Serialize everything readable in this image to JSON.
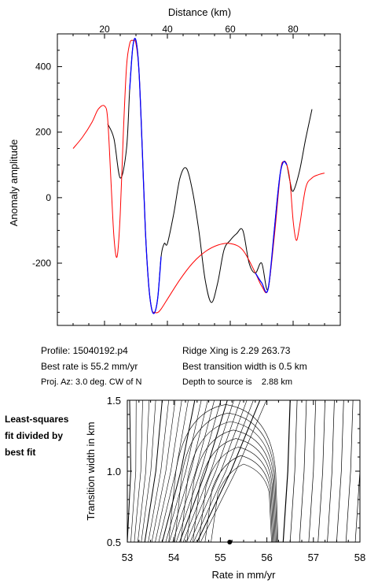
{
  "chart_data": [
    {
      "type": "line",
      "xlabel": "Distance (km)",
      "ylabel": "Anomaly amplitude",
      "xlim": [
        5,
        95
      ],
      "ylim": [
        -390,
        500
      ],
      "x_ticks": [
        20,
        40,
        60,
        80
      ],
      "y_ticks": [
        -200,
        0,
        200,
        400
      ],
      "grid": false,
      "series": [
        {
          "color": "#000000",
          "x": [
            21,
            23,
            25,
            27,
            28,
            29,
            30,
            31,
            32,
            33,
            34,
            35,
            36,
            37,
            38,
            39,
            40,
            42,
            44,
            46,
            48,
            50,
            52,
            54,
            56,
            58,
            60,
            62,
            64,
            66,
            68,
            70,
            72,
            74,
            75,
            76,
            77,
            78,
            79,
            80,
            82,
            84,
            86
          ],
          "y": [
            225,
            180,
            60,
            150,
            330,
            460,
            480,
            380,
            150,
            -100,
            -260,
            -340,
            -350,
            -300,
            -180,
            -140,
            -140,
            -50,
            60,
            90,
            20,
            -100,
            -250,
            -320,
            -260,
            -160,
            -130,
            -110,
            -100,
            -200,
            -230,
            -200,
            -280,
            -100,
            0,
            80,
            110,
            100,
            50,
            20,
            80,
            180,
            270
          ]
        },
        {
          "color": "#ff0000",
          "x": [
            10,
            13,
            16,
            18,
            20,
            21,
            22,
            23,
            24,
            25,
            26,
            27,
            28,
            29,
            30,
            31,
            32,
            33,
            34,
            35,
            36,
            37,
            38,
            40,
            44,
            48,
            52,
            56,
            60,
            64,
            68,
            70,
            72,
            74,
            76,
            77,
            78,
            79,
            80,
            81,
            82,
            84,
            86,
            88,
            90
          ],
          "y": [
            150,
            185,
            230,
            270,
            280,
            240,
            60,
            -120,
            -180,
            -50,
            200,
            400,
            470,
            480,
            470,
            380,
            150,
            -100,
            -260,
            -340,
            -350,
            -350,
            -340,
            -310,
            -250,
            -200,
            -165,
            -145,
            -140,
            -160,
            -230,
            -270,
            -280,
            -120,
            80,
            110,
            100,
            50,
            -70,
            -130,
            -90,
            30,
            60,
            70,
            75
          ]
        },
        {
          "color": "#0000ff",
          "x": [
            28,
            29,
            30,
            31,
            32,
            33,
            34,
            35,
            36,
            37,
            38,
            44,
            52,
            60,
            66,
            68,
            70,
            72,
            74,
            75,
            76,
            77,
            78
          ],
          "y": [
            330,
            460,
            480,
            380,
            150,
            -100,
            -260,
            -340,
            -350,
            -300,
            -180,
            null,
            null,
            null,
            null,
            -230,
            -260,
            -280,
            -100,
            0,
            80,
            110,
            100
          ]
        }
      ]
    },
    {
      "type": "contour",
      "xlabel": "Rate in mm/yr",
      "ylabel": "Transition width in km",
      "xlim": [
        53,
        58
      ],
      "ylim": [
        0.5,
        1.5
      ],
      "x_ticks": [
        "53",
        "54",
        "55",
        "56",
        "57",
        "58"
      ],
      "y_ticks": [
        "0.5",
        "1.0",
        "1.5"
      ],
      "best_fit_point": {
        "x": 55.2,
        "y": 0.5
      }
    }
  ],
  "info": {
    "profile": "Profile: 15040192.p4",
    "best_rate": "Best rate is 55.2 mm/yr",
    "proj_az": "Proj. Az: 3.0 deg. CW of N",
    "ridge_xing": "Ridge Xing is 2.29 263.73",
    "best_width": "Best transition width is 0.5 km",
    "depth": "Depth to source is    2.88 km"
  },
  "note_lines": [
    "Least-squares",
    "fit divided by",
    "best fit"
  ]
}
